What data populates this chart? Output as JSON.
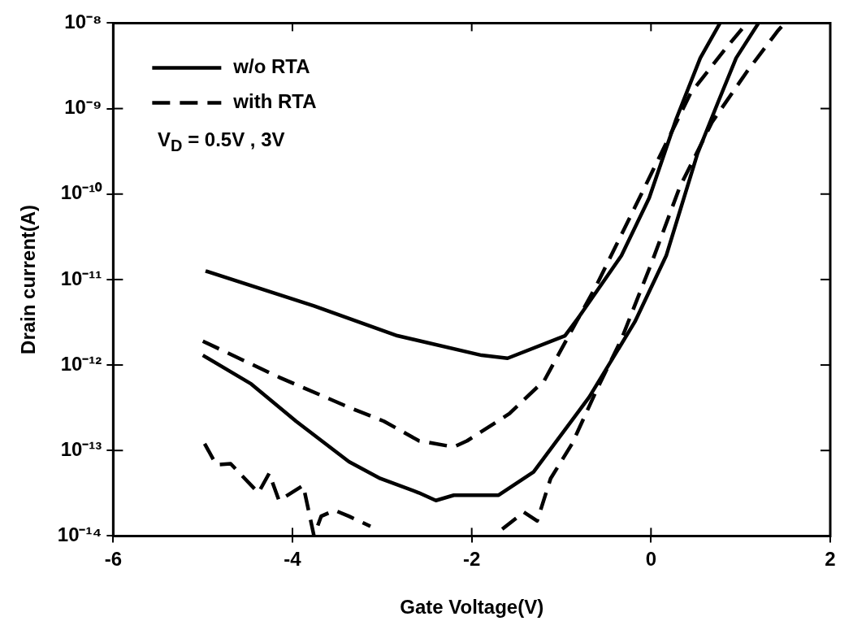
{
  "chart_data": {
    "type": "line",
    "xlabel": "Gate Voltage(V)",
    "ylabel": "Drain current(A)",
    "xlim": [
      -6,
      2
    ],
    "xticks": [
      -6,
      -4,
      -2,
      0,
      2
    ],
    "ylim": [
      1e-14,
      1e-08
    ],
    "log": "y",
    "yticks": [
      {
        "value": 1e-14,
        "label": "10⁻¹⁴"
      },
      {
        "value": 1e-13,
        "label": "10⁻¹³"
      },
      {
        "value": 1e-12,
        "label": "10⁻¹²"
      },
      {
        "value": 1e-11,
        "label": "10⁻¹¹"
      },
      {
        "value": 1e-10,
        "label": "10⁻¹⁰"
      },
      {
        "value": 1e-09,
        "label": "10⁻⁹"
      },
      {
        "value": 1e-08,
        "label": "10⁻⁸"
      }
    ],
    "grid": false,
    "legend": "top left",
    "marker": "none",
    "annotations": [
      "V$_{D}$ = 0.5V , 3V"
    ],
    "series": [
      {
        "name": "w/o RTA",
        "color": "#000000",
        "line_style": "solid",
        "x": [
          -4.97,
          -3.76,
          -2.83,
          -1.89,
          -1.6,
          -0.96,
          -0.8,
          -0.33,
          -0.02,
          0.28,
          0.55,
          0.77
        ],
        "values": [
          1.26e-11,
          4.9e-12,
          2.2e-12,
          1.3e-12,
          1.2e-12,
          2.2e-12,
          3.7e-12,
          1.9e-11,
          9e-11,
          7.5e-10,
          3.9e-09,
          1e-08
        ]
      },
      {
        "color": "#000000",
        "line_style": "solid",
        "x": [
          -5.0,
          -4.46,
          -3.96,
          -3.37,
          -3.02,
          -2.59,
          -2.4,
          -2.2,
          -1.7,
          -1.31,
          -0.69,
          -0.18,
          0.17,
          0.52,
          0.75,
          0.95,
          1.2
        ],
        "values": [
          1.3e-12,
          6e-13,
          2.2e-13,
          7.4e-14,
          4.7e-14,
          3.2e-14,
          2.6e-14,
          3e-14,
          3e-14,
          5.6e-14,
          4.2e-13,
          3.2e-12,
          1.9e-11,
          3e-10,
          1.2e-09,
          3.9e-09,
          1e-08
        ]
      },
      {
        "name": "with RTA",
        "color": "#000000",
        "line_style": "dashed",
        "x": [
          -5.0,
          -4.15,
          -3.37,
          -2.98,
          -2.59,
          -2.2,
          -2.05,
          -1.58,
          -1.19,
          -0.88,
          -0.61,
          -0.18,
          0.21,
          0.44,
          0.83,
          1.07
        ],
        "values": [
          1.9e-12,
          7.2e-13,
          3.2e-13,
          2.2e-13,
          1.3e-13,
          1.1e-13,
          1.3e-13,
          2.7e-13,
          6.6e-13,
          2.6e-12,
          8.5e-12,
          7e-11,
          4.8e-10,
          1.5e-09,
          5e-09,
          1e-08
        ]
      },
      {
        "color": "#000000",
        "line_style": "dashed",
        "x": [
          -4.98,
          -4.85,
          -4.69,
          -4.38,
          -4.26,
          -4.15,
          -3.88,
          -3.76,
          -3.68,
          -3.53,
          -3.37,
          -3.13,
          -2.4,
          -1.66,
          -1.42,
          -1.27,
          -1.12,
          -0.88,
          -0.61,
          -0.33,
          0.01,
          0.32,
          0.68,
          1.07,
          1.41,
          1.49
        ],
        "values": [
          1.2e-13,
          6.8e-14,
          7e-14,
          3.2e-14,
          5.4e-14,
          2.6e-14,
          3.9e-14,
          1e-14,
          1.7e-14,
          2e-14,
          1.7e-14,
          1.3e-14,
          null,
          1.2e-14,
          1.9e-14,
          1.5e-14,
          4.7e-14,
          1.2e-13,
          5e-13,
          2e-12,
          1.6e-11,
          1.2e-10,
          6.9e-10,
          2.7e-09,
          8e-09,
          1e-08
        ]
      }
    ]
  }
}
